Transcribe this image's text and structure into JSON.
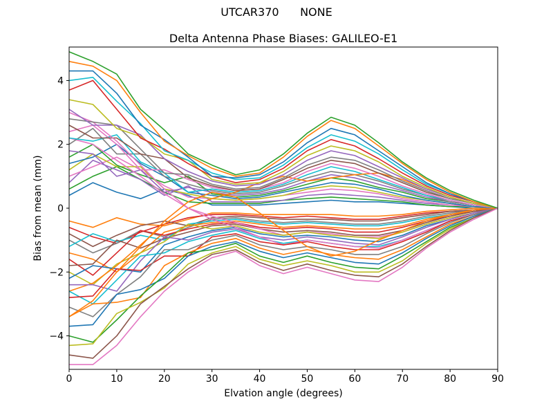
{
  "figure": {
    "suptitle": "UTCAR370      NONE",
    "background": "#ffffff",
    "axes_edge_color": "#000000"
  },
  "chart_data": {
    "type": "line",
    "suptitle": "UTCAR370      NONE",
    "title": "Delta Antenna Phase Biases: GALILEO-E1",
    "xlabel": "Elvation angle (degrees)",
    "ylabel": "Bias from mean (mm)",
    "xlim": [
      0,
      90
    ],
    "ylim": [
      -5.05,
      5.05
    ],
    "xticks": [
      0,
      10,
      20,
      30,
      40,
      50,
      60,
      70,
      80,
      90
    ],
    "yticks": [
      -4,
      -2,
      0,
      2,
      4
    ],
    "grid": false,
    "legend": "none",
    "line_width": 1.6,
    "palette": [
      "#1f77b4",
      "#ff7f0e",
      "#2ca02c",
      "#d62728",
      "#9467bd",
      "#8c564b",
      "#e377c2",
      "#7f7f7f",
      "#bcbd22",
      "#17becf"
    ],
    "x": [
      0,
      5,
      10,
      15,
      20,
      25,
      30,
      35,
      40,
      45,
      50,
      55,
      60,
      65,
      70,
      75,
      80,
      85,
      90
    ],
    "series": [
      {
        "values": [
          0.4,
          0.8,
          0.5,
          0.3,
          0.6,
          0.4,
          0.1,
          0.1,
          0.1,
          0.15,
          0.2,
          0.25,
          0.2,
          0.2,
          0.15,
          0.1,
          0.05,
          0,
          0
        ]
      },
      {
        "values": [
          -0.4,
          -0.6,
          -0.3,
          -0.5,
          -0.55,
          -0.35,
          -0.15,
          -0.15,
          -0.2,
          -0.2,
          -0.2,
          -0.2,
          -0.25,
          -0.25,
          -0.2,
          -0.1,
          -0.05,
          0,
          0
        ]
      },
      {
        "values": [
          0.6,
          1.0,
          1.3,
          0.9,
          0.5,
          0.2,
          0.15,
          0.15,
          0.15,
          0.25,
          0.3,
          0.35,
          0.3,
          0.25,
          0.2,
          0.1,
          0.05,
          0.05,
          0
        ]
      },
      {
        "values": [
          -0.6,
          -0.9,
          -1.1,
          -0.75,
          -0.5,
          -0.3,
          -0.2,
          -0.2,
          -0.25,
          -0.3,
          -0.25,
          -0.3,
          -0.35,
          -0.35,
          -0.25,
          -0.15,
          -0.1,
          -0.05,
          0
        ]
      },
      {
        "values": [
          0.8,
          1.5,
          1.2,
          0.9,
          0.4,
          0.7,
          0.2,
          0.2,
          0.2,
          0.25,
          0.4,
          0.45,
          0.4,
          0.35,
          0.25,
          0.15,
          0.1,
          0.05,
          0
        ]
      },
      {
        "values": [
          -0.8,
          -1.2,
          -0.85,
          -0.55,
          -0.4,
          -0.55,
          -0.3,
          -0.25,
          -0.3,
          -0.35,
          -0.35,
          -0.35,
          -0.4,
          -0.4,
          -0.3,
          -0.2,
          -0.1,
          -0.05,
          0
        ]
      },
      {
        "values": [
          1.0,
          1.3,
          1.6,
          1.2,
          0.7,
          0.35,
          0.3,
          0.25,
          0.3,
          0.4,
          0.5,
          0.6,
          0.55,
          0.45,
          0.3,
          0.2,
          0.1,
          0.05,
          0
        ]
      },
      {
        "values": [
          -1.0,
          -1.4,
          -1.1,
          -0.7,
          -0.9,
          -0.6,
          -0.35,
          -0.3,
          -0.4,
          -0.45,
          -0.4,
          -0.45,
          -0.5,
          -0.5,
          -0.4,
          -0.25,
          -0.15,
          -0.05,
          0
        ]
      },
      {
        "values": [
          1.2,
          1.7,
          1.3,
          1.3,
          0.6,
          0.45,
          0.3,
          0.25,
          0.3,
          0.4,
          0.6,
          0.7,
          0.65,
          0.5,
          0.35,
          0.25,
          0.15,
          0.05,
          0
        ]
      },
      {
        "values": [
          -1.2,
          -0.8,
          -1.05,
          -0.85,
          -1.0,
          -0.5,
          -0.4,
          -0.35,
          -0.45,
          -0.5,
          -0.45,
          -0.5,
          -0.55,
          -0.55,
          -0.45,
          -0.3,
          -0.2,
          -0.1,
          0
        ]
      },
      {
        "values": [
          1.4,
          1.6,
          2.0,
          1.4,
          1.0,
          0.5,
          0.4,
          0.3,
          0.35,
          0.5,
          0.65,
          0.8,
          0.75,
          0.6,
          0.4,
          0.25,
          0.15,
          0.05,
          0
        ]
      },
      {
        "values": [
          -1.4,
          -1.6,
          -2.0,
          -1.4,
          -0.75,
          -0.55,
          -0.45,
          -0.4,
          -0.5,
          -0.6,
          -0.55,
          -0.6,
          -0.65,
          -0.65,
          -0.55,
          -0.35,
          -0.2,
          -0.1,
          0
        ]
      },
      {
        "values": [
          1.6,
          2.0,
          1.35,
          1.05,
          0.8,
          1.0,
          0.45,
          0.35,
          0.4,
          0.55,
          0.75,
          0.95,
          0.85,
          0.65,
          0.5,
          0.3,
          0.2,
          0.1,
          0
        ]
      },
      {
        "values": [
          -1.6,
          -2.1,
          -1.4,
          -0.7,
          -0.85,
          -0.65,
          -0.5,
          -0.45,
          -0.6,
          -0.65,
          -0.6,
          -0.65,
          -0.75,
          -0.75,
          -0.6,
          -0.4,
          -0.25,
          -0.1,
          0
        ]
      },
      {
        "values": [
          1.8,
          1.7,
          1.0,
          1.2,
          0.5,
          0.65,
          0.5,
          0.4,
          0.45,
          0.6,
          0.85,
          1.05,
          0.95,
          0.75,
          0.55,
          0.35,
          0.2,
          0.1,
          0
        ]
      },
      {
        "values": [
          -1.8,
          -1.75,
          -1.0,
          -1.25,
          -0.95,
          -0.75,
          -0.55,
          -0.5,
          -0.65,
          -0.75,
          -0.7,
          -0.75,
          -0.85,
          -0.85,
          -0.7,
          -0.45,
          -0.25,
          -0.1,
          0
        ]
      },
      {
        "values": [
          2.2,
          2.0,
          1.5,
          1.0,
          0.45,
          0.0,
          -0.25,
          -0.45,
          -0.65,
          -0.85,
          -0.75,
          -0.8,
          -0.9,
          -0.9,
          -0.75,
          -0.5,
          -0.3,
          -0.15,
          0
        ]
      },
      {
        "values": [
          2.0,
          2.5,
          1.7,
          1.7,
          1.0,
          0.75,
          0.55,
          0.45,
          0.5,
          0.7,
          0.95,
          1.15,
          1.05,
          0.85,
          0.6,
          0.4,
          0.2,
          0.1,
          0
        ]
      },
      {
        "values": [
          -2.0,
          -2.4,
          -1.75,
          -1.4,
          -1.05,
          -0.5,
          -0.65,
          -0.55,
          -0.75,
          -0.85,
          -0.75,
          -0.85,
          -0.9,
          -0.95,
          -0.75,
          -0.5,
          -0.3,
          -0.15,
          0
        ]
      },
      {
        "values": [
          2.2,
          2.1,
          2.3,
          1.45,
          1.1,
          0.5,
          0.6,
          0.5,
          0.55,
          0.75,
          1.05,
          1.3,
          1.15,
          0.9,
          0.65,
          0.4,
          0.25,
          0.1,
          0
        ]
      },
      {
        "values": [
          -2.2,
          -1.8,
          -1.9,
          -2.0,
          -1.15,
          -0.9,
          -0.7,
          -0.6,
          -0.8,
          -0.9,
          -0.85,
          -0.9,
          -1.0,
          -1.05,
          -0.85,
          -0.55,
          -0.35,
          -0.15,
          0
        ]
      },
      {
        "values": [
          -2.6,
          -2.35,
          -1.8,
          -1.15,
          -0.5,
          0.0,
          0.3,
          0.5,
          0.8,
          1.0,
          0.85,
          0.95,
          1.05,
          1.1,
          0.9,
          0.6,
          0.35,
          0.15,
          0
        ]
      },
      {
        "color": "#e377c2",
        "values": [
          2.4,
          2.6,
          2.0,
          1.2,
          1.2,
          0.9,
          0.65,
          0.55,
          0.6,
          0.8,
          1.15,
          1.4,
          1.25,
          1.0,
          0.7,
          0.45,
          0.25,
          0.1,
          0
        ]
      },
      {
        "color": "#9467bd",
        "values": [
          -2.4,
          -2.4,
          -2.6,
          -1.65,
          -0.9,
          -1.0,
          -0.75,
          -0.65,
          -0.9,
          -1.0,
          -0.9,
          -1.0,
          -1.1,
          -1.15,
          -0.9,
          -0.6,
          -0.35,
          -0.15,
          0
        ]
      },
      {
        "color": "#8c564b",
        "values": [
          2.6,
          2.2,
          2.2,
          1.7,
          1.55,
          0.95,
          0.7,
          0.55,
          0.6,
          0.9,
          1.25,
          1.5,
          1.4,
          1.1,
          0.8,
          0.5,
          0.3,
          0.15,
          0
        ]
      },
      {
        "color": "#17becf",
        "values": [
          -2.6,
          -3.0,
          -2.25,
          -1.5,
          -1.4,
          -1.05,
          -0.85,
          -0.7,
          -0.95,
          -1.1,
          -1.0,
          -1.1,
          -1.2,
          -1.2,
          -1.0,
          -0.7,
          -0.4,
          -0.2,
          0
        ]
      },
      {
        "values": [
          3.0,
          2.7,
          2.1,
          1.35,
          0.6,
          0.0,
          -0.35,
          -0.6,
          -0.9,
          -1.15,
          -1.0,
          -1.1,
          -1.2,
          -1.25,
          -1.0,
          -0.7,
          -0.4,
          -0.2,
          0
        ]
      },
      {
        "color": "#7f7f7f",
        "values": [
          2.8,
          2.7,
          2.6,
          1.85,
          1.1,
          1.05,
          0.75,
          0.6,
          0.65,
          0.95,
          1.35,
          1.6,
          1.5,
          1.2,
          0.85,
          0.55,
          0.3,
          0.15,
          0
        ]
      },
      {
        "color": "#d62728",
        "values": [
          -2.8,
          -2.75,
          -1.9,
          -1.95,
          -1.5,
          -1.5,
          -0.9,
          -0.8,
          -1.05,
          -1.15,
          -1.05,
          -1.2,
          -1.3,
          -1.3,
          -1.05,
          -0.75,
          -0.4,
          -0.2,
          0
        ]
      },
      {
        "color": "#9467bd",
        "values": [
          3.1,
          2.6,
          2.6,
          2.3,
          1.55,
          1.15,
          0.85,
          0.7,
          0.75,
          1.05,
          1.5,
          1.8,
          1.65,
          1.3,
          0.95,
          0.6,
          0.35,
          0.15,
          0
        ]
      },
      {
        "color": "#7f7f7f",
        "values": [
          -3.1,
          -3.4,
          -2.7,
          -2.15,
          -1.3,
          -1.3,
          -1.0,
          -0.85,
          -1.15,
          -1.3,
          -1.2,
          -1.3,
          -1.45,
          -1.45,
          -1.2,
          -0.8,
          -0.45,
          -0.2,
          0
        ]
      },
      {
        "values": [
          -3.4,
          -2.9,
          -2.0,
          -1.2,
          -0.4,
          0.2,
          0.5,
          0.35,
          -0.15,
          -0.7,
          -1.2,
          -1.5,
          -1.35,
          -1.0,
          -0.7,
          -0.4,
          -0.2,
          -0.05,
          0
        ]
      },
      {
        "color": "#bcbd22",
        "values": [
          3.4,
          3.25,
          2.5,
          2.25,
          1.7,
          1.5,
          0.9,
          0.75,
          0.8,
          1.15,
          1.65,
          1.95,
          1.8,
          1.45,
          1.0,
          0.65,
          0.35,
          0.15,
          0
        ]
      },
      {
        "color": "#ff7f0e",
        "values": [
          -3.4,
          -3.0,
          -2.95,
          -2.8,
          -1.8,
          -1.4,
          -1.1,
          -0.95,
          -1.25,
          -1.45,
          -1.3,
          -1.45,
          -1.55,
          -1.6,
          -1.3,
          -0.9,
          -0.5,
          -0.25,
          0
        ]
      },
      {
        "color": "#d62728",
        "values": [
          3.7,
          4.0,
          3.1,
          2.2,
          1.85,
          1.4,
          1.0,
          0.8,
          0.9,
          1.25,
          1.8,
          2.15,
          1.95,
          1.55,
          1.1,
          0.7,
          0.4,
          0.2,
          0
        ]
      },
      {
        "color": "#1f77b4",
        "values": [
          -3.7,
          -3.65,
          -2.7,
          -2.55,
          -2.2,
          -1.5,
          -1.2,
          -1.05,
          -1.35,
          -1.55,
          -1.4,
          -1.55,
          -1.7,
          -1.75,
          -1.4,
          -0.95,
          -0.55,
          -0.25,
          0
        ]
      },
      {
        "color": "#17becf",
        "values": [
          4.0,
          4.1,
          3.35,
          2.65,
          1.8,
          1.5,
          1.1,
          0.9,
          0.95,
          1.35,
          1.9,
          2.3,
          2.1,
          1.7,
          1.2,
          0.75,
          0.45,
          0.2,
          0
        ]
      },
      {
        "color": "#2ca02c",
        "values": [
          -4.0,
          -4.2,
          -3.5,
          -2.75,
          -2.1,
          -1.4,
          -1.3,
          -1.1,
          -1.5,
          -1.7,
          -1.5,
          -1.7,
          -1.85,
          -1.9,
          -1.5,
          -1.05,
          -0.6,
          -0.3,
          0
        ]
      },
      {
        "color": "#1f77b4",
        "values": [
          4.3,
          4.3,
          3.6,
          2.6,
          2.15,
          1.6,
          1.0,
          0.95,
          1.05,
          1.45,
          2.05,
          2.5,
          2.3,
          1.8,
          1.3,
          0.8,
          0.45,
          0.2,
          0
        ]
      },
      {
        "color": "#bcbd22",
        "values": [
          -4.3,
          -4.25,
          -3.3,
          -2.95,
          -2.5,
          -1.75,
          -1.4,
          -1.2,
          -1.6,
          -1.8,
          -1.65,
          -1.8,
          -2.0,
          -2.0,
          -1.65,
          -1.1,
          -0.65,
          -0.3,
          0
        ]
      },
      {
        "color": "#ff7f0e",
        "values": [
          4.6,
          4.45,
          4.0,
          3.0,
          2.1,
          1.65,
          1.25,
          1.0,
          1.1,
          1.6,
          2.25,
          2.75,
          2.5,
          1.95,
          1.4,
          0.9,
          0.5,
          0.2,
          0
        ]
      },
      {
        "color": "#8c564b",
        "values": [
          -4.6,
          -4.7,
          -4.0,
          -3.0,
          -2.45,
          -1.9,
          -1.45,
          -1.3,
          -1.7,
          -1.95,
          -1.75,
          -1.95,
          -2.1,
          -2.15,
          -1.75,
          -1.2,
          -0.7,
          -0.3,
          0
        ]
      },
      {
        "color": "#2ca02c",
        "values": [
          4.9,
          4.6,
          4.2,
          3.1,
          2.45,
          1.7,
          1.35,
          1.05,
          1.2,
          1.7,
          2.35,
          2.85,
          2.6,
          2.05,
          1.45,
          0.95,
          0.55,
          0.25,
          0
        ]
      },
      {
        "color": "#e377c2",
        "values": [
          -4.9,
          -4.9,
          -4.3,
          -3.4,
          -2.6,
          -2.0,
          -1.55,
          -1.35,
          -1.8,
          -2.05,
          -1.85,
          -2.05,
          -2.25,
          -2.3,
          -1.85,
          -1.25,
          -0.75,
          -0.35,
          0
        ]
      }
    ]
  }
}
